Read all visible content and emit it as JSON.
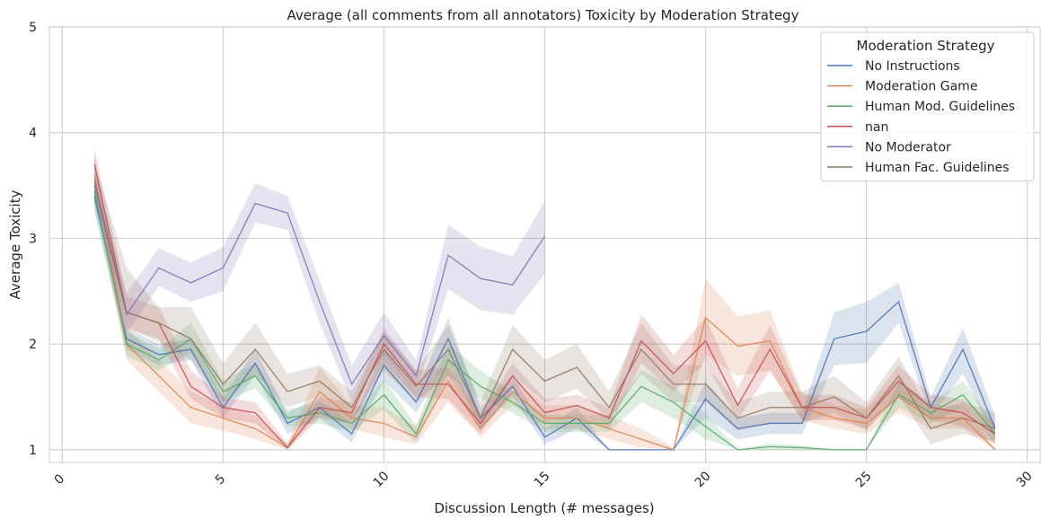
{
  "chart_data": {
    "type": "line",
    "title": "Average (all comments from all annotators) Toxicity by Moderation Strategy",
    "xlabel": "Discussion Length (# messages)",
    "ylabel": "Average Toxicity",
    "xlim": [
      -0.4,
      30.4
    ],
    "ylim": [
      0.88,
      5.0
    ],
    "xticks": [
      0,
      5,
      10,
      15,
      20,
      25,
      30
    ],
    "yticks": [
      1,
      2,
      3,
      4,
      5
    ],
    "grid": true,
    "legend": {
      "title": "Moderation Strategy",
      "position": "top-right"
    },
    "series": [
      {
        "name": "No Instructions",
        "color": "#4c72b0",
        "x": [
          1,
          2,
          3,
          4,
          5,
          6,
          7,
          8,
          9,
          10,
          11,
          12,
          13,
          14,
          15,
          16,
          17,
          18,
          19,
          20,
          21,
          22,
          23,
          24,
          25,
          26,
          27,
          28,
          29
        ],
        "y": [
          3.4,
          2.05,
          1.9,
          1.95,
          1.4,
          1.82,
          1.25,
          1.4,
          1.15,
          1.8,
          1.45,
          2.05,
          1.3,
          1.6,
          1.12,
          1.3,
          1.0,
          1.0,
          1.0,
          1.48,
          1.2,
          1.25,
          1.25,
          2.05,
          2.12,
          2.4,
          1.4,
          1.95,
          1.2
        ],
        "lower": [
          3.25,
          1.95,
          1.8,
          1.85,
          1.3,
          1.7,
          1.15,
          1.3,
          1.07,
          1.65,
          1.35,
          1.85,
          1.2,
          1.5,
          1.05,
          1.2,
          1.0,
          1.0,
          1.0,
          1.3,
          1.1,
          1.15,
          1.15,
          1.8,
          1.82,
          2.2,
          1.3,
          1.72,
          1.1
        ],
        "upper": [
          3.55,
          2.15,
          2.0,
          2.05,
          1.5,
          1.95,
          1.35,
          1.5,
          1.25,
          1.95,
          1.55,
          2.25,
          1.4,
          1.7,
          1.2,
          1.4,
          1.0,
          1.0,
          1.0,
          1.65,
          1.3,
          1.35,
          1.35,
          2.3,
          2.4,
          2.58,
          1.5,
          2.15,
          1.32
        ]
      },
      {
        "name": "Moderation Game",
        "color": "#dd8452",
        "x": [
          1,
          2,
          3,
          4,
          5,
          6,
          7,
          8,
          9,
          10,
          11,
          12,
          13,
          14,
          15,
          16,
          17,
          18,
          19,
          20,
          21,
          22,
          23,
          24,
          25,
          26,
          27,
          28,
          29
        ],
        "y": [
          3.6,
          2.0,
          1.7,
          1.4,
          1.3,
          1.2,
          1.02,
          1.55,
          1.3,
          1.25,
          1.12,
          1.65,
          1.2,
          1.55,
          1.3,
          1.3,
          1.2,
          1.1,
          1.0,
          2.25,
          1.98,
          2.03,
          1.4,
          1.3,
          1.25,
          1.5,
          1.3,
          1.3,
          1.0
        ],
        "lower": [
          3.4,
          1.85,
          1.55,
          1.25,
          1.18,
          1.1,
          1.0,
          1.35,
          1.2,
          1.12,
          1.05,
          1.45,
          1.12,
          1.42,
          1.2,
          1.2,
          1.1,
          1.02,
          1.0,
          1.9,
          1.7,
          1.75,
          1.28,
          1.2,
          1.15,
          1.35,
          1.2,
          1.2,
          1.0
        ],
        "upper": [
          3.8,
          2.15,
          1.85,
          1.55,
          1.42,
          1.32,
          1.06,
          1.78,
          1.42,
          1.4,
          1.22,
          1.85,
          1.3,
          1.68,
          1.42,
          1.42,
          1.32,
          1.2,
          1.02,
          2.62,
          2.26,
          2.32,
          1.54,
          1.42,
          1.38,
          1.68,
          1.42,
          1.42,
          1.02
        ]
      },
      {
        "name": "Human Mod. Guidelines",
        "color": "#55a868",
        "x": [
          1,
          2,
          3,
          4,
          5,
          6,
          7,
          8,
          9,
          10,
          11,
          12,
          13,
          14,
          15,
          16,
          17,
          18,
          19,
          20,
          21,
          22,
          23,
          24,
          25,
          26,
          27,
          28,
          29
        ],
        "y": [
          3.45,
          2.0,
          1.85,
          2.05,
          1.55,
          1.7,
          1.3,
          1.35,
          1.25,
          1.52,
          1.15,
          1.85,
          1.6,
          1.45,
          1.25,
          1.25,
          1.25,
          1.6,
          1.45,
          1.22,
          1.0,
          1.03,
          1.02,
          1.0,
          1.0,
          1.52,
          1.35,
          1.52,
          1.15
        ],
        "lower": [
          3.3,
          1.88,
          1.75,
          1.92,
          1.45,
          1.58,
          1.22,
          1.25,
          1.17,
          1.38,
          1.07,
          1.7,
          1.48,
          1.35,
          1.17,
          1.17,
          1.17,
          1.45,
          1.3,
          1.1,
          1.0,
          1.0,
          1.0,
          1.0,
          1.0,
          1.4,
          1.25,
          1.4,
          1.05
        ],
        "upper": [
          3.6,
          2.12,
          1.95,
          2.2,
          1.65,
          1.82,
          1.38,
          1.45,
          1.33,
          1.66,
          1.23,
          2.0,
          1.75,
          1.55,
          1.33,
          1.33,
          1.33,
          1.75,
          1.6,
          1.34,
          1.0,
          1.06,
          1.04,
          1.0,
          1.0,
          1.64,
          1.45,
          1.65,
          1.25
        ]
      },
      {
        "name": "nan",
        "color": "#c44e52",
        "x": [
          1,
          2,
          3,
          4,
          5,
          6,
          7,
          8,
          9,
          10,
          11,
          12,
          13,
          14,
          15,
          16,
          17,
          18,
          19,
          20,
          21,
          22,
          23,
          24,
          25,
          26,
          27,
          28,
          29
        ],
        "y": [
          3.7,
          2.3,
          2.2,
          1.6,
          1.4,
          1.35,
          1.02,
          1.4,
          1.35,
          2.0,
          1.62,
          1.62,
          1.25,
          1.7,
          1.35,
          1.42,
          1.3,
          2.03,
          1.72,
          2.03,
          1.42,
          1.95,
          1.4,
          1.4,
          1.3,
          1.65,
          1.4,
          1.35,
          1.15
        ],
        "lower": [
          3.5,
          2.15,
          2.05,
          1.48,
          1.3,
          1.25,
          1.0,
          1.3,
          1.25,
          1.82,
          1.5,
          1.48,
          1.15,
          1.58,
          1.25,
          1.32,
          1.2,
          1.82,
          1.55,
          1.82,
          1.28,
          1.75,
          1.28,
          1.28,
          1.2,
          1.5,
          1.28,
          1.22,
          1.05
        ],
        "upper": [
          3.85,
          2.45,
          2.35,
          1.75,
          1.5,
          1.45,
          1.06,
          1.5,
          1.45,
          2.15,
          1.75,
          1.78,
          1.35,
          1.82,
          1.48,
          1.52,
          1.4,
          2.28,
          1.9,
          2.25,
          1.58,
          2.18,
          1.52,
          1.52,
          1.4,
          1.8,
          1.52,
          1.48,
          1.25
        ]
      },
      {
        "name": "No Moderator",
        "color": "#8172b3",
        "x": [
          1,
          2,
          3,
          4,
          5,
          6,
          7,
          8,
          9,
          10,
          11,
          12,
          13,
          14,
          15
        ],
        "y": [
          3.5,
          2.28,
          2.72,
          2.58,
          2.72,
          3.33,
          3.24,
          2.4,
          1.62,
          2.08,
          1.7,
          2.84,
          2.62,
          2.56,
          3.02
        ],
        "lower": [
          3.35,
          2.1,
          2.55,
          2.4,
          2.5,
          3.15,
          3.08,
          2.2,
          1.45,
          1.9,
          1.55,
          2.52,
          2.32,
          2.28,
          2.66
        ],
        "upper": [
          3.65,
          2.48,
          2.91,
          2.77,
          2.92,
          3.52,
          3.4,
          2.6,
          1.8,
          2.3,
          1.85,
          3.13,
          2.92,
          2.83,
          3.35
        ]
      },
      {
        "name": "Human Fac. Guidelines",
        "color": "#937860",
        "x": [
          1,
          2,
          3,
          4,
          5,
          6,
          7,
          8,
          9,
          10,
          11,
          12,
          13,
          14,
          15,
          16,
          17,
          18,
          19,
          20,
          21,
          22,
          23,
          24,
          25,
          26,
          27,
          28,
          29
        ],
        "y": [
          3.55,
          2.3,
          2.2,
          2.05,
          1.62,
          1.95,
          1.55,
          1.65,
          1.4,
          1.95,
          1.6,
          1.95,
          1.3,
          1.95,
          1.65,
          1.78,
          1.4,
          1.95,
          1.62,
          1.62,
          1.3,
          1.4,
          1.4,
          1.5,
          1.3,
          1.7,
          1.2,
          1.3,
          1.2
        ],
        "lower": [
          3.4,
          2.15,
          2.02,
          1.85,
          1.45,
          1.72,
          1.4,
          1.5,
          1.28,
          1.75,
          1.45,
          1.7,
          1.18,
          1.7,
          1.45,
          1.58,
          1.28,
          1.72,
          1.45,
          1.45,
          1.18,
          1.25,
          1.25,
          1.35,
          1.18,
          1.52,
          1.05,
          1.15,
          1.08
        ],
        "upper": [
          3.72,
          2.72,
          2.35,
          2.35,
          1.82,
          2.2,
          1.72,
          1.8,
          1.55,
          2.12,
          1.75,
          2.18,
          1.45,
          2.18,
          1.85,
          2.0,
          1.55,
          2.2,
          1.8,
          1.8,
          1.45,
          1.55,
          1.55,
          1.7,
          1.45,
          1.88,
          1.35,
          1.45,
          1.35
        ]
      }
    ]
  }
}
